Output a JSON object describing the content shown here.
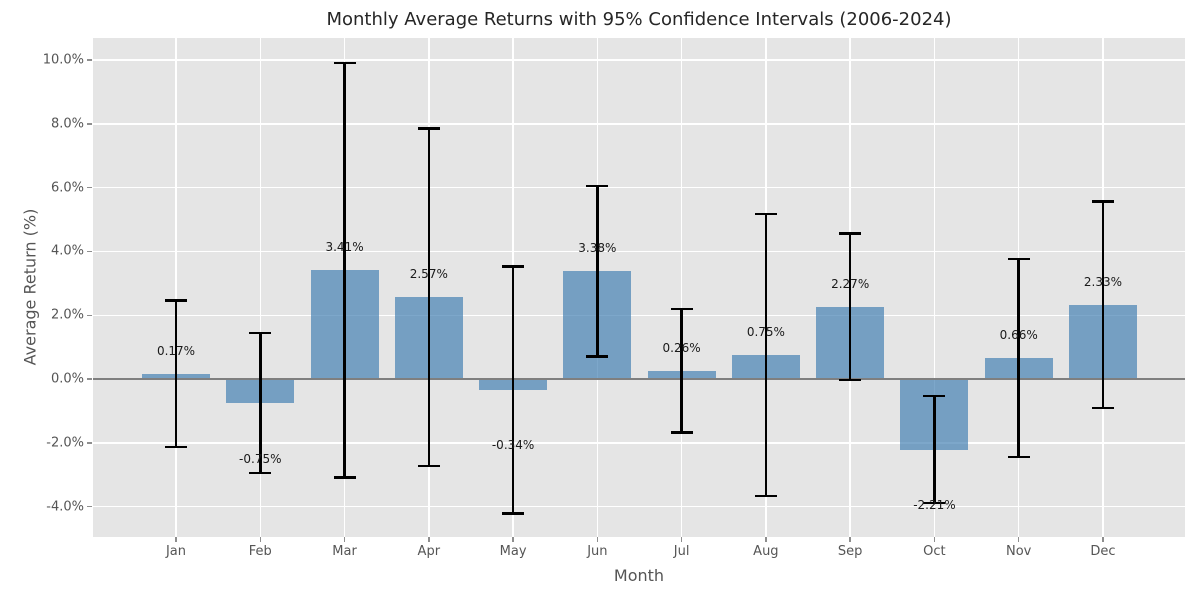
{
  "title": "Monthly Average Returns with 95% Confidence Intervals (2006-2024)",
  "chart_data": {
    "type": "bar",
    "title": "Monthly Average Returns with 95% Confidence Intervals (2006-2024)",
    "xlabel": "Month",
    "ylabel": "Average Return (%)",
    "categories": [
      "Jan",
      "Feb",
      "Mar",
      "Apr",
      "May",
      "Jun",
      "Jul",
      "Aug",
      "Sep",
      "Oct",
      "Nov",
      "Dec"
    ],
    "values": [
      0.17,
      -0.75,
      3.41,
      2.57,
      -0.34,
      3.38,
      0.26,
      0.75,
      2.27,
      -2.21,
      0.66,
      2.33
    ],
    "bar_labels": [
      "0.17%",
      "-0.75%",
      "3.41%",
      "2.57%",
      "-0.34%",
      "3.38%",
      "0.26%",
      "0.75%",
      "2.27%",
      "-2.21%",
      "0.66%",
      "2.33%"
    ],
    "error_95ci": [
      2.3,
      2.19,
      6.49,
      5.29,
      3.87,
      2.67,
      1.93,
      4.42,
      2.3,
      1.68,
      3.1,
      3.24
    ],
    "ci_upper": [
      2.47,
      1.44,
      9.9,
      7.86,
      3.53,
      6.05,
      2.19,
      5.17,
      4.57,
      -0.53,
      3.76,
      5.57
    ],
    "ci_lower": [
      -2.13,
      -2.94,
      -3.08,
      -2.72,
      -4.21,
      0.71,
      -1.67,
      -3.67,
      -0.03,
      -3.89,
      -2.44,
      -0.91
    ],
    "y_tick_labels": [
      "10.0%",
      "8.0%",
      "6.0%",
      "4.0%",
      "2.0%",
      "0.0%",
      "-2.0%",
      "-4.0%"
    ],
    "y_tick_values": [
      10,
      8,
      6,
      4,
      2,
      0,
      -2,
      -4
    ],
    "ylim": [
      -4.95,
      10.69
    ],
    "grid": true,
    "legend": "none",
    "error_bar_style": "capped black lines, 95% confidence interval",
    "colors": {
      "bar": "#4682b4",
      "bar_alpha": 0.7,
      "plot_background": "#e5e5e5",
      "grid": "#ffffff",
      "zero_line": "#7f7f7f",
      "error_bar": "#000000",
      "tick_text": "#555555",
      "title_text": "#262626",
      "value_label_text": "#1a1a1a"
    }
  }
}
